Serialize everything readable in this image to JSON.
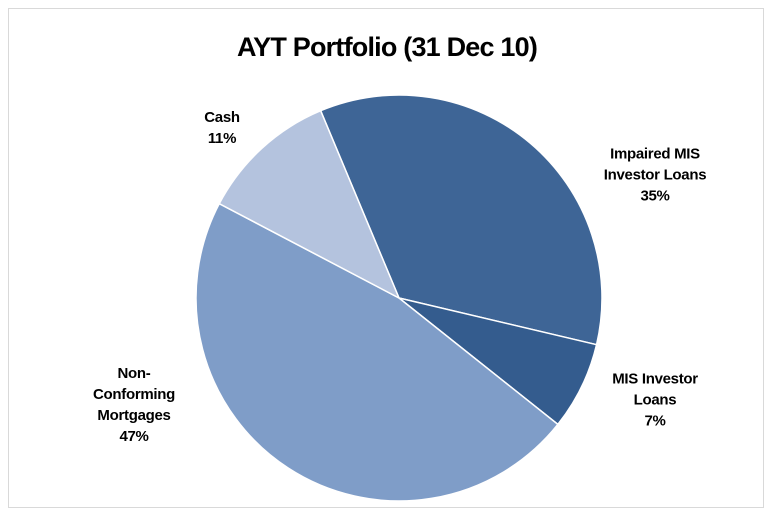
{
  "chart_data": {
    "type": "pie",
    "title": "AYT Portfolio (31 Dec 10)",
    "categories": [
      "Impaired MIS Investor Loans",
      "MIS Investor Loans",
      "Non-Conforming Mortgages",
      "Cash"
    ],
    "values": [
      35,
      7,
      47,
      11
    ],
    "value_labels": [
      "35%",
      "7%",
      "47%",
      "11%"
    ],
    "colors": [
      "#3e6596",
      "#345c8e",
      "#7f9dc8",
      "#b4c3de"
    ]
  }
}
